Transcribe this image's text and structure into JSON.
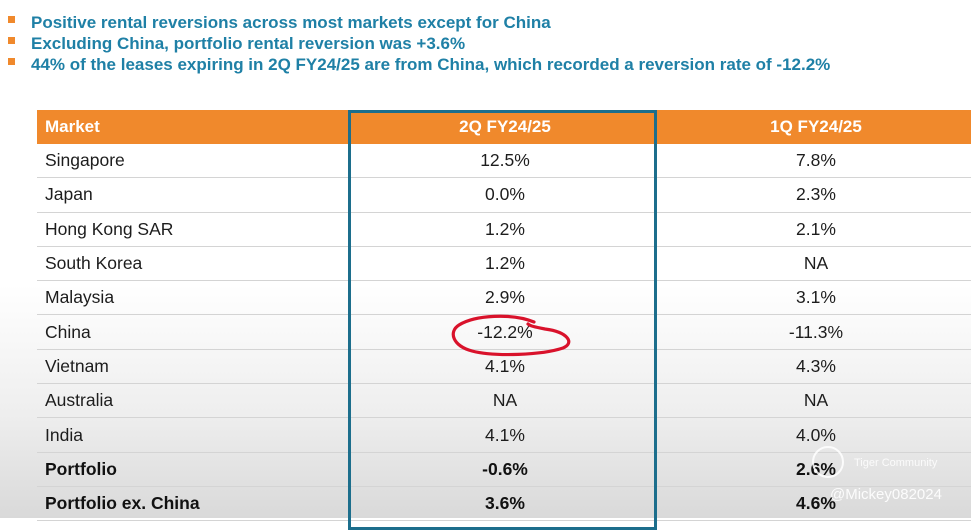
{
  "bullets": [
    "Positive rental reversions across most markets except for China",
    "Excluding China, portfolio rental reversion was +3.6%",
    "44% of the leases expiring in 2Q FY24/25 are from China, which recorded a reversion rate of -12.2%"
  ],
  "table": {
    "headers": [
      "Market",
      "2Q FY24/25",
      "1Q FY24/25"
    ],
    "rows": [
      {
        "market": "Singapore",
        "q2": "12.5%",
        "q1": "7.8%"
      },
      {
        "market": "Japan",
        "q2": "0.0%",
        "q1": "2.3%"
      },
      {
        "market": "Hong Kong SAR",
        "q2": "1.2%",
        "q1": "2.1%"
      },
      {
        "market": "South Korea",
        "q2": "1.2%",
        "q1": "NA"
      },
      {
        "market": "Malaysia",
        "q2": "2.9%",
        "q1": "3.1%"
      },
      {
        "market": "China",
        "q2": "-12.2%",
        "q1": "-11.3%"
      },
      {
        "market": "Vietnam",
        "q2": "4.1%",
        "q1": "4.3%"
      },
      {
        "market": "Australia",
        "q2": "NA",
        "q1": "NA"
      },
      {
        "market": "India",
        "q2": "4.1%",
        "q1": "4.0%"
      },
      {
        "market": "Portfolio",
        "q2": "-0.6%",
        "q1": "2.6%"
      },
      {
        "market": "Portfolio ex. China",
        "q2": "3.6%",
        "q1": "4.6%"
      }
    ]
  },
  "colors": {
    "bullet_text": "#1f80a6",
    "bullet_marker": "#f0892c",
    "header_bg": "#f0892c",
    "highlight_border": "#1c6e8c",
    "annotation_circle": "#d9122b"
  },
  "watermark": {
    "brand": "Tiger Community",
    "handle": "@Mickey082024"
  }
}
